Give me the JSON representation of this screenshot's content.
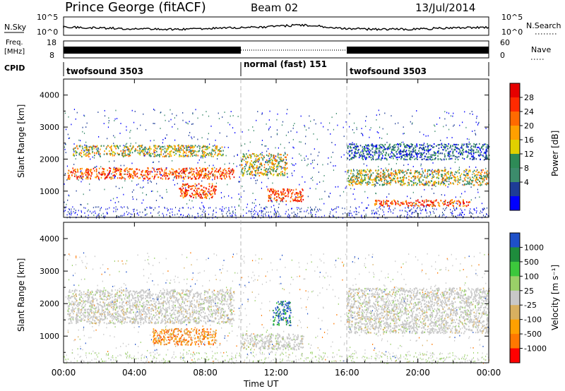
{
  "header": {
    "station": "Prince George (fitACF)",
    "beam": "Beam 02",
    "date": "13/Jul/2014"
  },
  "top_panels": {
    "nsky_label": "N.Sky",
    "nsky_ticks": [
      "10^5",
      "10^0"
    ],
    "nsearch_label": "N.Search",
    "nsearch_ticks": [
      "10^5",
      "10^0"
    ],
    "freq_label_1": "Freq.",
    "freq_label_2": "[MHz]",
    "freq_ticks": [
      "18",
      "8"
    ],
    "nave_label": "Nave",
    "nave_ticks": [
      "60",
      "0"
    ],
    "cpid_label": "CPID",
    "cpid_segments": [
      {
        "label": "twofsound 3503",
        "start": 0,
        "end": 10
      },
      {
        "label": "normal (fast) 151",
        "start": 10,
        "end": 16
      },
      {
        "label": "twofsound 3503",
        "start": 16,
        "end": 24
      }
    ]
  },
  "chart_data": [
    {
      "type": "heatmap",
      "title": "Power",
      "ylabel": "Slant Range [km]",
      "xlabel": "",
      "ylim": [
        180,
        4500
      ],
      "yticks": [
        "4000",
        "3000",
        "2000",
        "1000"
      ],
      "xlim": [
        0,
        24
      ],
      "colorbar_label": "Power [dB]",
      "colorbar_ticks": [
        "28",
        "24",
        "20",
        "16",
        "12",
        "8",
        "4"
      ],
      "colorbar_colors": [
        "#e60000",
        "#ff2a00",
        "#ff6a00",
        "#ffa000",
        "#e0d000",
        "#2e8b57",
        "#3c8c6c",
        "#1e3c96",
        "#0000ff"
      ],
      "echo_bands": [
        {
          "t0": 0.2,
          "t1": 9.6,
          "r0": 1400,
          "r1": 1750,
          "level": "high"
        },
        {
          "t0": 0.5,
          "t1": 9.0,
          "r0": 2100,
          "r1": 2450,
          "level": "mid"
        },
        {
          "t0": 6.5,
          "t1": 8.6,
          "r0": 800,
          "r1": 1250,
          "level": "high"
        },
        {
          "t0": 10.0,
          "t1": 12.6,
          "r0": 1500,
          "r1": 2200,
          "level": "mid"
        },
        {
          "t0": 11.5,
          "t1": 13.5,
          "r0": 700,
          "r1": 1100,
          "level": "high"
        },
        {
          "t0": 16.0,
          "t1": 24.0,
          "r0": 1200,
          "r1": 1700,
          "level": "mid"
        },
        {
          "t0": 16.0,
          "t1": 24.0,
          "r0": 2000,
          "r1": 2500,
          "level": "low"
        },
        {
          "t0": 17.5,
          "t1": 23.0,
          "r0": 550,
          "r1": 750,
          "level": "high"
        }
      ]
    },
    {
      "type": "heatmap",
      "title": "Velocity",
      "ylabel": "Slant Range [km]",
      "xlabel": "Time UT",
      "ylim": [
        180,
        4500
      ],
      "yticks": [
        "4000",
        "3000",
        "2000",
        "1000"
      ],
      "xlim": [
        0,
        24
      ],
      "xticks": [
        "00:00",
        "04:00",
        "08:00",
        "12:00",
        "16:00",
        "20:00",
        "00:00"
      ],
      "colorbar_label": "Velocity [m s⁻¹]",
      "colorbar_ticks": [
        "1000",
        "500",
        "100",
        "25",
        "-25",
        "-100",
        "-500",
        "-1000"
      ],
      "colorbar_colors": [
        "#1e50c8",
        "#1e8c3c",
        "#3cc83c",
        "#9ad068",
        "#c8c8c8",
        "#d8b060",
        "#ffa000",
        "#ff7800",
        "#ff0000"
      ],
      "echo_bands": [
        {
          "t0": 0.2,
          "t1": 9.6,
          "r0": 1400,
          "r1": 2450,
          "level": "gray"
        },
        {
          "t0": 5.0,
          "t1": 8.6,
          "r0": 750,
          "r1": 1250,
          "level": "orange"
        },
        {
          "t0": 10.0,
          "t1": 13.5,
          "r0": 600,
          "r1": 1100,
          "level": "gray"
        },
        {
          "t0": 11.8,
          "t1": 12.8,
          "r0": 1350,
          "r1": 2100,
          "level": "blue"
        },
        {
          "t0": 16.0,
          "t1": 24.0,
          "r0": 1100,
          "r1": 2500,
          "level": "gray"
        }
      ]
    }
  ]
}
